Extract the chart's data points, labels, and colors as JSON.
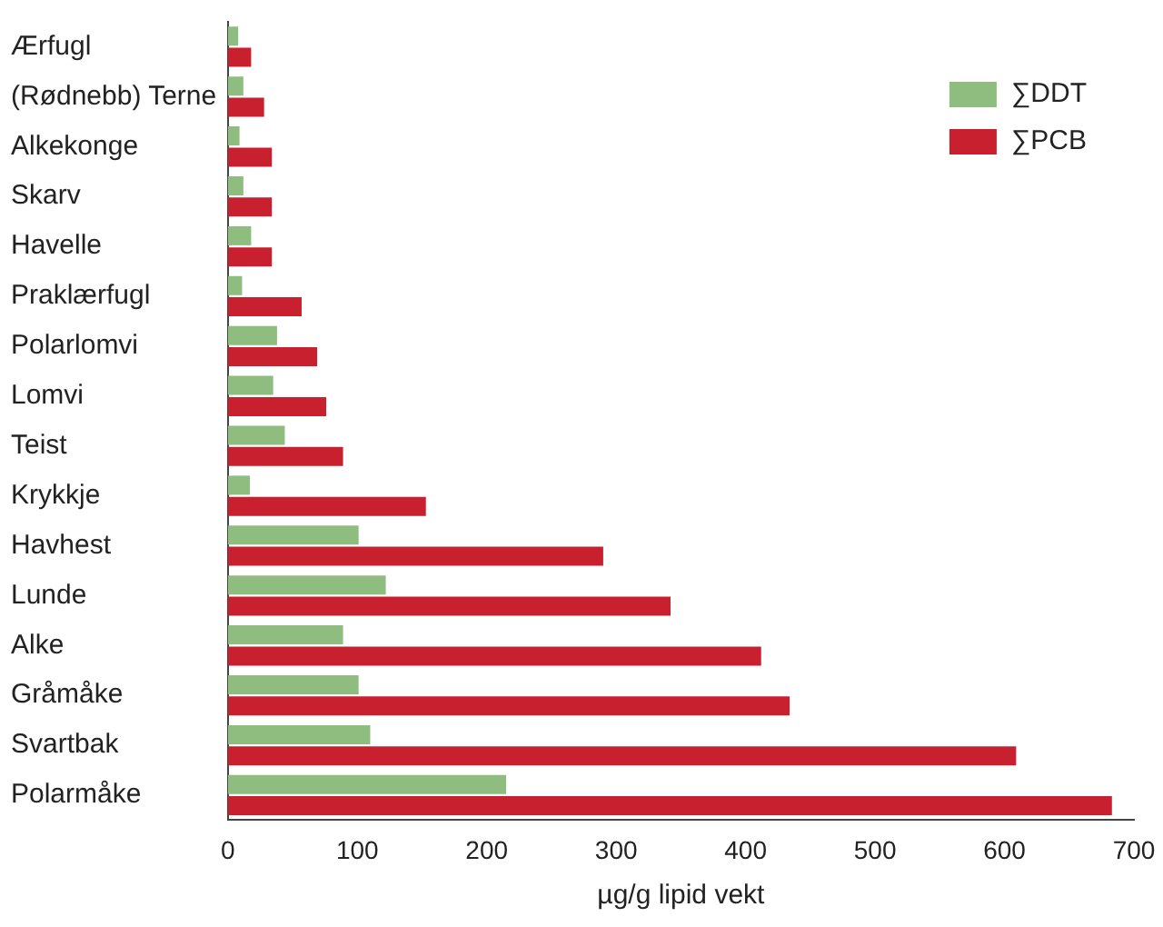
{
  "chart_data": {
    "type": "bar",
    "orientation": "horizontal",
    "xlabel": "µg/g lipid vekt",
    "categories": [
      "Ærfugl",
      "(Rødnebb) Terne",
      "Alkekonge",
      "Skarv",
      "Havelle",
      "Praklærfugl",
      "Polarlomvi",
      "Lomvi",
      "Teist",
      "Krykkje",
      "Havhest",
      "Lunde",
      "Alke",
      "Gråmåke",
      "Svartbak",
      "Polarmåke"
    ],
    "series": [
      {
        "name": "∑DDT",
        "color": "#8fbc7f",
        "values": [
          8,
          12,
          9,
          12,
          18,
          11,
          38,
          35,
          44,
          17,
          101,
          122,
          89,
          101,
          110,
          215
        ]
      },
      {
        "name": "∑PCB",
        "color": "#c8202e",
        "values": [
          18,
          28,
          34,
          34,
          34,
          57,
          69,
          76,
          89,
          153,
          290,
          342,
          412,
          434,
          609,
          683
        ]
      }
    ],
    "xlim": [
      0,
      700
    ],
    "xticks": [
      0,
      100,
      200,
      300,
      400,
      500,
      600,
      700
    ],
    "grid": false,
    "legend": "top right"
  }
}
